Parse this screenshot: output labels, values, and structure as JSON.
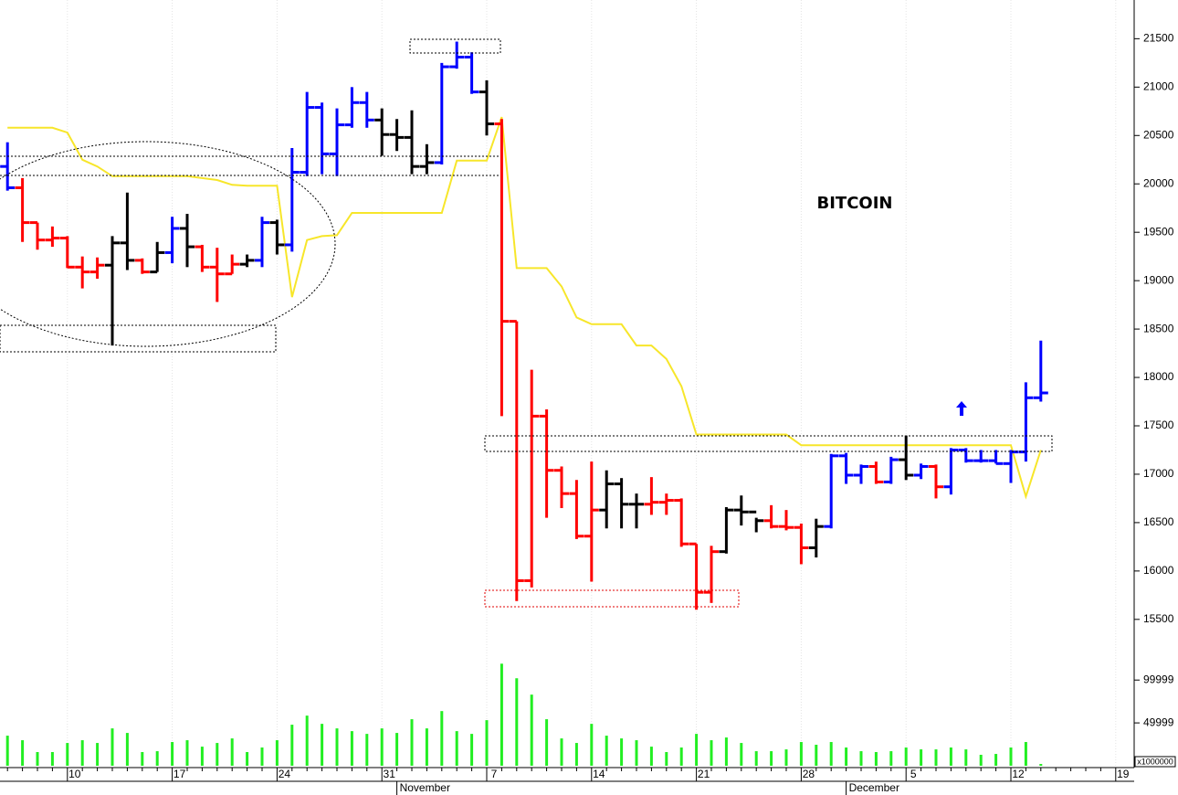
{
  "chart_data": {
    "type": "ohlc",
    "title": "BITCOIN",
    "categories": [
      null,
      null,
      null,
      null,
      "10",
      null,
      null,
      null,
      null,
      null,
      null,
      "17",
      null,
      null,
      null,
      null,
      null,
      null,
      "24",
      null,
      null,
      null,
      null,
      null,
      null,
      "31",
      null,
      null,
      null,
      null,
      null,
      null,
      "7",
      null,
      null,
      null,
      null,
      null,
      null,
      "14",
      null,
      null,
      null,
      null,
      null,
      null,
      "21",
      null,
      null,
      null,
      null,
      null,
      null,
      "28",
      null,
      null,
      null,
      null,
      null,
      null,
      "5",
      null,
      null,
      null,
      null,
      null,
      null,
      "12",
      null,
      null,
      null,
      null,
      null,
      null,
      "19"
    ],
    "months": [
      null,
      null,
      null,
      null,
      null,
      null,
      null,
      null,
      null,
      null,
      null,
      null,
      null,
      null,
      null,
      null,
      null,
      null,
      null,
      null,
      null,
      null,
      null,
      null,
      null,
      null,
      "November",
      null,
      null,
      null,
      null,
      null,
      null,
      null,
      null,
      null,
      null,
      null,
      null,
      null,
      null,
      null,
      null,
      null,
      null,
      null,
      null,
      null,
      null,
      null,
      null,
      null,
      null,
      null,
      null,
      null,
      "December",
      null,
      null,
      null,
      null,
      null,
      null,
      null,
      null,
      null,
      null,
      null,
      null,
      null,
      null,
      null,
      null,
      null,
      null
    ],
    "open": [
      20180,
      19960,
      19600,
      19420,
      19440,
      19140,
      19090,
      19160,
      19390,
      19210,
      19090,
      19290,
      19540,
      19350,
      19140,
      19070,
      19170,
      19210,
      19600,
      19370,
      20120,
      20790,
      20310,
      20610,
      20840,
      20660,
      20510,
      20480,
      20180,
      20220,
      21210,
      21310,
      20950,
      20620,
      18580,
      15900,
      17600,
      17040,
      16800,
      16360,
      16630,
      16900,
      16690,
      16690,
      16710,
      16730,
      16280,
      15780,
      16200,
      16630,
      16610,
      16520,
      16460,
      16450,
      16240,
      16460,
      17190,
      16990,
      17080,
      16920,
      17150,
      16990,
      17080,
      16870,
      17250,
      17140,
      17140,
      17110,
      17230,
      17790,
      null,
      null,
      null,
      null,
      null
    ],
    "high": [
      20430,
      20060,
      19600,
      19560,
      19460,
      19250,
      19240,
      19460,
      19910,
      19230,
      19400,
      19660,
      19690,
      19370,
      19340,
      19270,
      19270,
      19660,
      19630,
      20370,
      20950,
      20840,
      20780,
      21000,
      20950,
      20780,
      20670,
      20760,
      20410,
      21250,
      21470,
      21360,
      21070,
      20670,
      18580,
      18080,
      17670,
      17080,
      16940,
      17130,
      17040,
      16960,
      16800,
      16970,
      16800,
      16750,
      16280,
      16260,
      16660,
      16780,
      16550,
      16680,
      16630,
      16490,
      16540,
      17210,
      17220,
      17100,
      17130,
      17180,
      17400,
      17110,
      17100,
      17270,
      17270,
      17250,
      17250,
      17250,
      17950,
      18380,
      null,
      null,
      null,
      null,
      null
    ],
    "low": [
      19930,
      19400,
      19320,
      19350,
      19130,
      18920,
      19020,
      18330,
      19110,
      19070,
      19090,
      19180,
      19140,
      19090,
      18780,
      19070,
      19140,
      19140,
      19270,
      19300,
      20080,
      20100,
      20080,
      20580,
      20580,
      20290,
      20340,
      20100,
      20100,
      20200,
      21190,
      20930,
      20500,
      17600,
      15690,
      15830,
      16550,
      16650,
      16330,
      15890,
      16440,
      16440,
      16440,
      16580,
      16580,
      16250,
      15600,
      15670,
      16180,
      16470,
      16400,
      16440,
      16420,
      16070,
      16140,
      16440,
      16900,
      16900,
      16900,
      16900,
      16940,
      16950,
      16750,
      16790,
      17120,
      17120,
      17110,
      16910,
      17130,
      17750,
      null,
      null,
      null,
      null,
      null
    ],
    "close": [
      19960,
      19600,
      19420,
      19440,
      19140,
      19090,
      19160,
      19390,
      19210,
      19090,
      19290,
      19540,
      19350,
      19140,
      19070,
      19170,
      19210,
      19600,
      19370,
      20120,
      20790,
      20310,
      20610,
      20840,
      20660,
      20510,
      20480,
      20180,
      20220,
      21210,
      21310,
      20950,
      20620,
      18580,
      15900,
      17600,
      17040,
      16800,
      16360,
      16630,
      16900,
      16690,
      16690,
      16710,
      16730,
      16280,
      15780,
      16200,
      16630,
      16610,
      16520,
      16460,
      16450,
      16240,
      16460,
      17190,
      16990,
      17080,
      16920,
      17150,
      16990,
      17080,
      16870,
      17250,
      17140,
      17140,
      17110,
      17230,
      17790,
      17840,
      null,
      null,
      null,
      null,
      null
    ],
    "bar_colors": [
      "#0000ff",
      "#ff0000",
      "#ff0000",
      "#ff0000",
      "#ff0000",
      "#ff0000",
      "#ff0000",
      "#000000",
      "#000000",
      "#ff0000",
      "#000000",
      "#0000ff",
      "#000000",
      "#ff0000",
      "#ff0000",
      "#ff0000",
      "#000000",
      "#0000ff",
      "#000000",
      "#0000ff",
      "#0000ff",
      "#0000ff",
      "#0000ff",
      "#0000ff",
      "#0000ff",
      "#000000",
      "#000000",
      "#000000",
      "#000000",
      "#0000ff",
      "#0000ff",
      "#0000ff",
      "#000000",
      "#ff0000",
      "#ff0000",
      "#ff0000",
      "#ff0000",
      "#ff0000",
      "#ff0000",
      "#ff0000",
      "#000000",
      "#000000",
      "#000000",
      "#ff0000",
      "#ff0000",
      "#ff0000",
      "#ff0000",
      "#ff0000",
      "#000000",
      "#000000",
      "#000000",
      "#ff0000",
      "#ff0000",
      "#ff0000",
      "#000000",
      "#0000ff",
      "#0000ff",
      "#0000ff",
      "#ff0000",
      "#0000ff",
      "#000000",
      "#0000ff",
      "#ff0000",
      "#0000ff",
      "#0000ff",
      "#0000ff",
      "#0000ff",
      "#0000ff",
      "#0000ff",
      "#0000ff",
      null,
      null,
      null,
      null,
      null
    ],
    "line": {
      "color": "#f7e62a",
      "values": [
        20580,
        20580,
        20580,
        20580,
        20530,
        20250,
        20180,
        20080,
        20080,
        20080,
        20080,
        20080,
        20080,
        20060,
        20040,
        19990,
        19980,
        19980,
        19980,
        18830,
        19420,
        19460,
        19470,
        19700,
        19700,
        19700,
        19700,
        19700,
        19700,
        19700,
        20240,
        20240,
        20240,
        20690,
        19130,
        19130,
        19130,
        18940,
        18620,
        18550,
        18550,
        18550,
        18330,
        18330,
        18190,
        17910,
        17410,
        17410,
        17410,
        17410,
        17410,
        17410,
        17410,
        17300,
        17300,
        17300,
        17300,
        17300,
        17300,
        17300,
        17300,
        17300,
        17300,
        17300,
        17300,
        17300,
        17300,
        17300,
        16770,
        17250,
        null,
        null,
        null,
        null,
        null
      ]
    },
    "ylim": [
      15300,
      21900
    ],
    "yticks": [
      15500,
      16000,
      16500,
      17000,
      17500,
      18000,
      18500,
      19000,
      19500,
      20000,
      20500,
      21000,
      21500
    ],
    "volume": {
      "color": "#22ee22",
      "unit_label": "x1000000",
      "values": [
        35100,
        29800,
        16000,
        16000,
        26600,
        29800,
        26600,
        43600,
        38300,
        16000,
        17000,
        27700,
        29800,
        22300,
        26600,
        31900,
        16000,
        21300,
        29800,
        47900,
        58500,
        48900,
        43600,
        40400,
        37200,
        43600,
        38300,
        54300,
        43600,
        63800,
        40400,
        37200,
        53200,
        119100,
        102100,
        83000,
        54300,
        31900,
        26600,
        48900,
        35100,
        31900,
        29800,
        22300,
        16000,
        21300,
        37200,
        29800,
        33000,
        26600,
        17000,
        17000,
        19100,
        27700,
        24500,
        27700,
        21300,
        17000,
        16000,
        17000,
        21300,
        19100,
        19100,
        21300,
        19100,
        12800,
        13800,
        21300,
        27700,
        2100,
        null,
        null,
        null,
        null,
        null
      ],
      "ylim": [
        0,
        145000
      ],
      "yticks": [
        49999,
        99999
      ]
    }
  }
}
